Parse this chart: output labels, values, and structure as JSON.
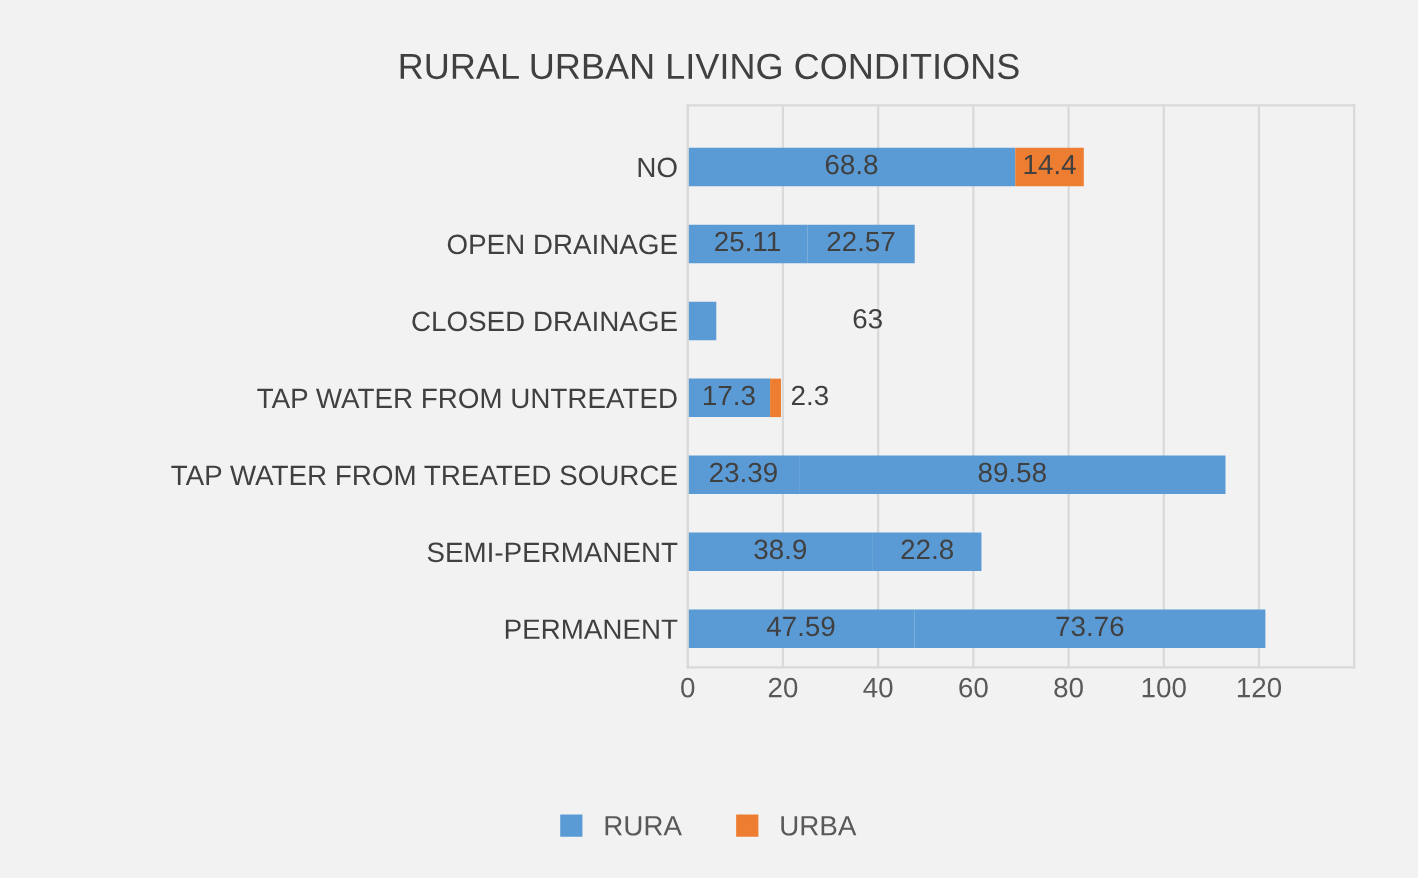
{
  "chart_data": {
    "type": "bar",
    "orientation": "horizontal",
    "stacked": true,
    "title": "RURAL URBAN LIVING CONDITIONS",
    "categories": [
      "NO",
      "OPEN DRAINAGE",
      "CLOSED DRAINAGE",
      "TAP WATER FROM UNTREATED",
      "TAP WATER FROM TREATED SOURCE",
      "SEMI-PERMANENT",
      "PERMANENT"
    ],
    "series": [
      {
        "name": "RURA",
        "color": "#5b9bd5",
        "values": [
          68.8,
          25.11,
          6,
          17.3,
          23.39,
          38.9,
          47.59
        ],
        "value_labels": [
          "68.8",
          "25.11",
          null,
          "17.3",
          "23.39",
          "38.9",
          "47.59"
        ]
      },
      {
        "name": "URBA",
        "color": "#ed7d31",
        "colors": [
          "#ed7d31",
          "#5b9bd5",
          "#5b9bd5",
          "#ed7d31",
          "#5b9bd5",
          "#5b9bd5",
          "#5b9bd5"
        ],
        "values": [
          14.4,
          22.57,
          null,
          2.3,
          89.58,
          22.8,
          73.76
        ],
        "value_labels": [
          "14.4",
          "22.57",
          null,
          "2.3",
          "89.58",
          "22.8",
          "73.76"
        ]
      }
    ],
    "annotations": [
      "63"
    ],
    "xlim": [
      0,
      140
    ],
    "xticks": [
      0,
      20,
      40,
      60,
      80,
      100,
      120
    ],
    "grid": "x",
    "legend": "bottom"
  }
}
